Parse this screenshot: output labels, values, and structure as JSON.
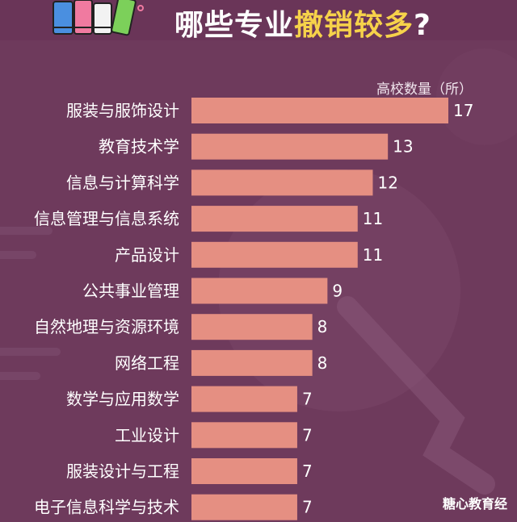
{
  "header": {
    "title_part1": "哪些专业",
    "title_part2": "撤销较多",
    "title_part3": "?"
  },
  "chart_data": {
    "type": "bar",
    "orientation": "horizontal",
    "unit_label": "高校数量（所）",
    "categories": [
      "服装与服饰设计",
      "教育技术学",
      "信息与计算科学",
      "信息管理与信息系统",
      "产品设计",
      "公共事业管理",
      "自然地理与资源环境",
      "网络工程",
      "数学与应用数学",
      "工业设计",
      "服装设计与工程",
      "电子信息科学与技术"
    ],
    "values": [
      17,
      13,
      12,
      11,
      11,
      9,
      8,
      8,
      7,
      7,
      7,
      7
    ],
    "xlim": [
      0,
      17
    ],
    "grid": false,
    "bar_color": "#e58f82",
    "background_color": "#6e3a5c",
    "title_highlight_color": "#f6d24a"
  },
  "footer": {
    "source": "糖心教育经"
  }
}
